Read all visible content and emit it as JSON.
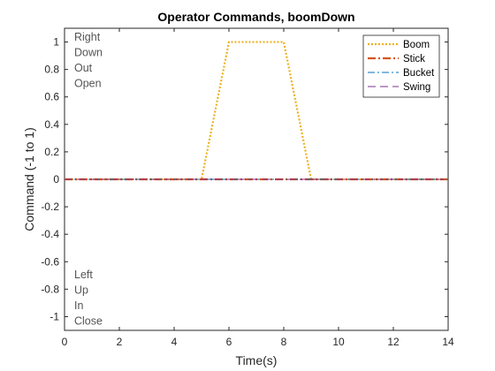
{
  "chart_data": {
    "type": "line",
    "title": "Operator Commands, boomDown",
    "xlabel": "Time(s)",
    "ylabel": "Command (-1 to 1)",
    "xlim": [
      0,
      14
    ],
    "ylim": [
      -1.1,
      1.1
    ],
    "xticks": [
      "0",
      "2",
      "4",
      "6",
      "8",
      "10",
      "12",
      "14"
    ],
    "yticks": [
      "-1",
      "-0.8",
      "-0.6",
      "-0.4",
      "-0.2",
      "0",
      "0.2",
      "0.4",
      "0.6",
      "0.8",
      "1"
    ],
    "grid": false,
    "legend_position": "top-right",
    "series": [
      {
        "name": "Boom",
        "color": "#EDB120",
        "dash": "dotted",
        "x": [
          0,
          5,
          6,
          8,
          9,
          14
        ],
        "y": [
          0,
          0,
          1,
          1,
          0,
          0
        ]
      },
      {
        "name": "Stick",
        "color": "#D95319",
        "dash": "dashdot",
        "x": [
          0,
          14
        ],
        "y": [
          0,
          0
        ]
      },
      {
        "name": "Bucket",
        "color": "#0072BD",
        "dash": "dashdot-thin",
        "x": [
          0,
          14
        ],
        "y": [
          0,
          0
        ]
      },
      {
        "name": "Swing",
        "color": "#7E2F8E",
        "dash": "dashed",
        "x": [
          0,
          14
        ],
        "y": [
          0,
          0
        ]
      }
    ],
    "annotations": {
      "top": [
        "Right",
        "Down",
        "Out",
        "Open"
      ],
      "bottom": [
        "Left",
        "Up",
        "In",
        "Close"
      ]
    }
  }
}
